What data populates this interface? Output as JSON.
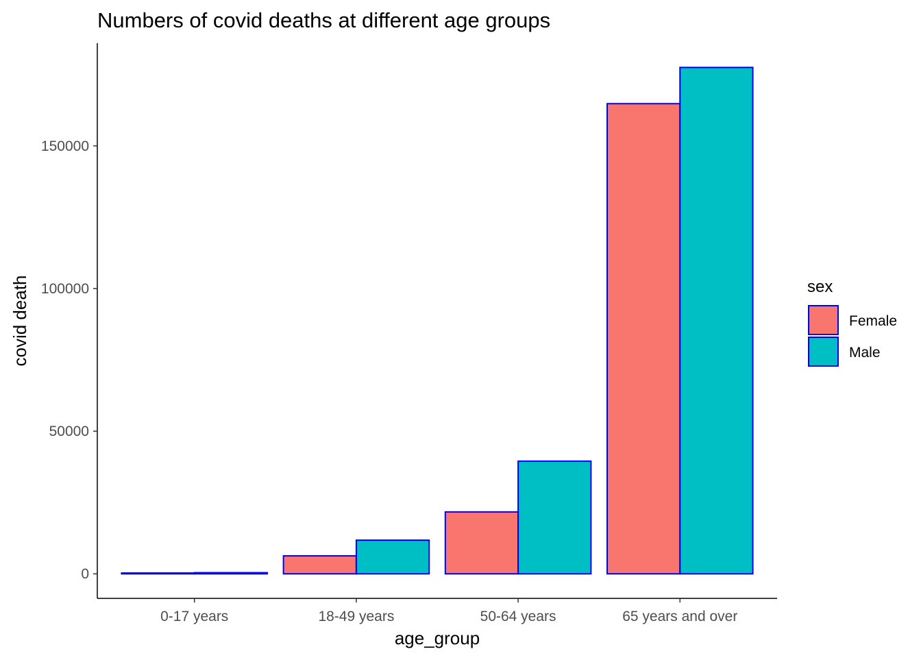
{
  "chart_data": {
    "type": "bar",
    "title": "Numbers of covid deaths at different age groups",
    "xlabel": "age_group",
    "ylabel": "covid death",
    "categories": [
      "0-17 years",
      "18-49 years",
      "50-64 years",
      "65 years and over"
    ],
    "series": [
      {
        "name": "Female",
        "color": "#F8766D",
        "values": [
          300,
          6300,
          21700,
          164800
        ]
      },
      {
        "name": "Male",
        "color": "#00BFC4",
        "values": [
          400,
          11800,
          39500,
          177500
        ]
      }
    ],
    "bar_outline_color": "#0000FF",
    "ylim": [
      -8600,
      186000
    ],
    "yticks": [
      0,
      50000,
      100000,
      150000
    ],
    "ytick_labels": [
      "0",
      "50000",
      "100000",
      "150000"
    ],
    "grid": false,
    "legend": {
      "title": "sex",
      "position": "right"
    }
  }
}
